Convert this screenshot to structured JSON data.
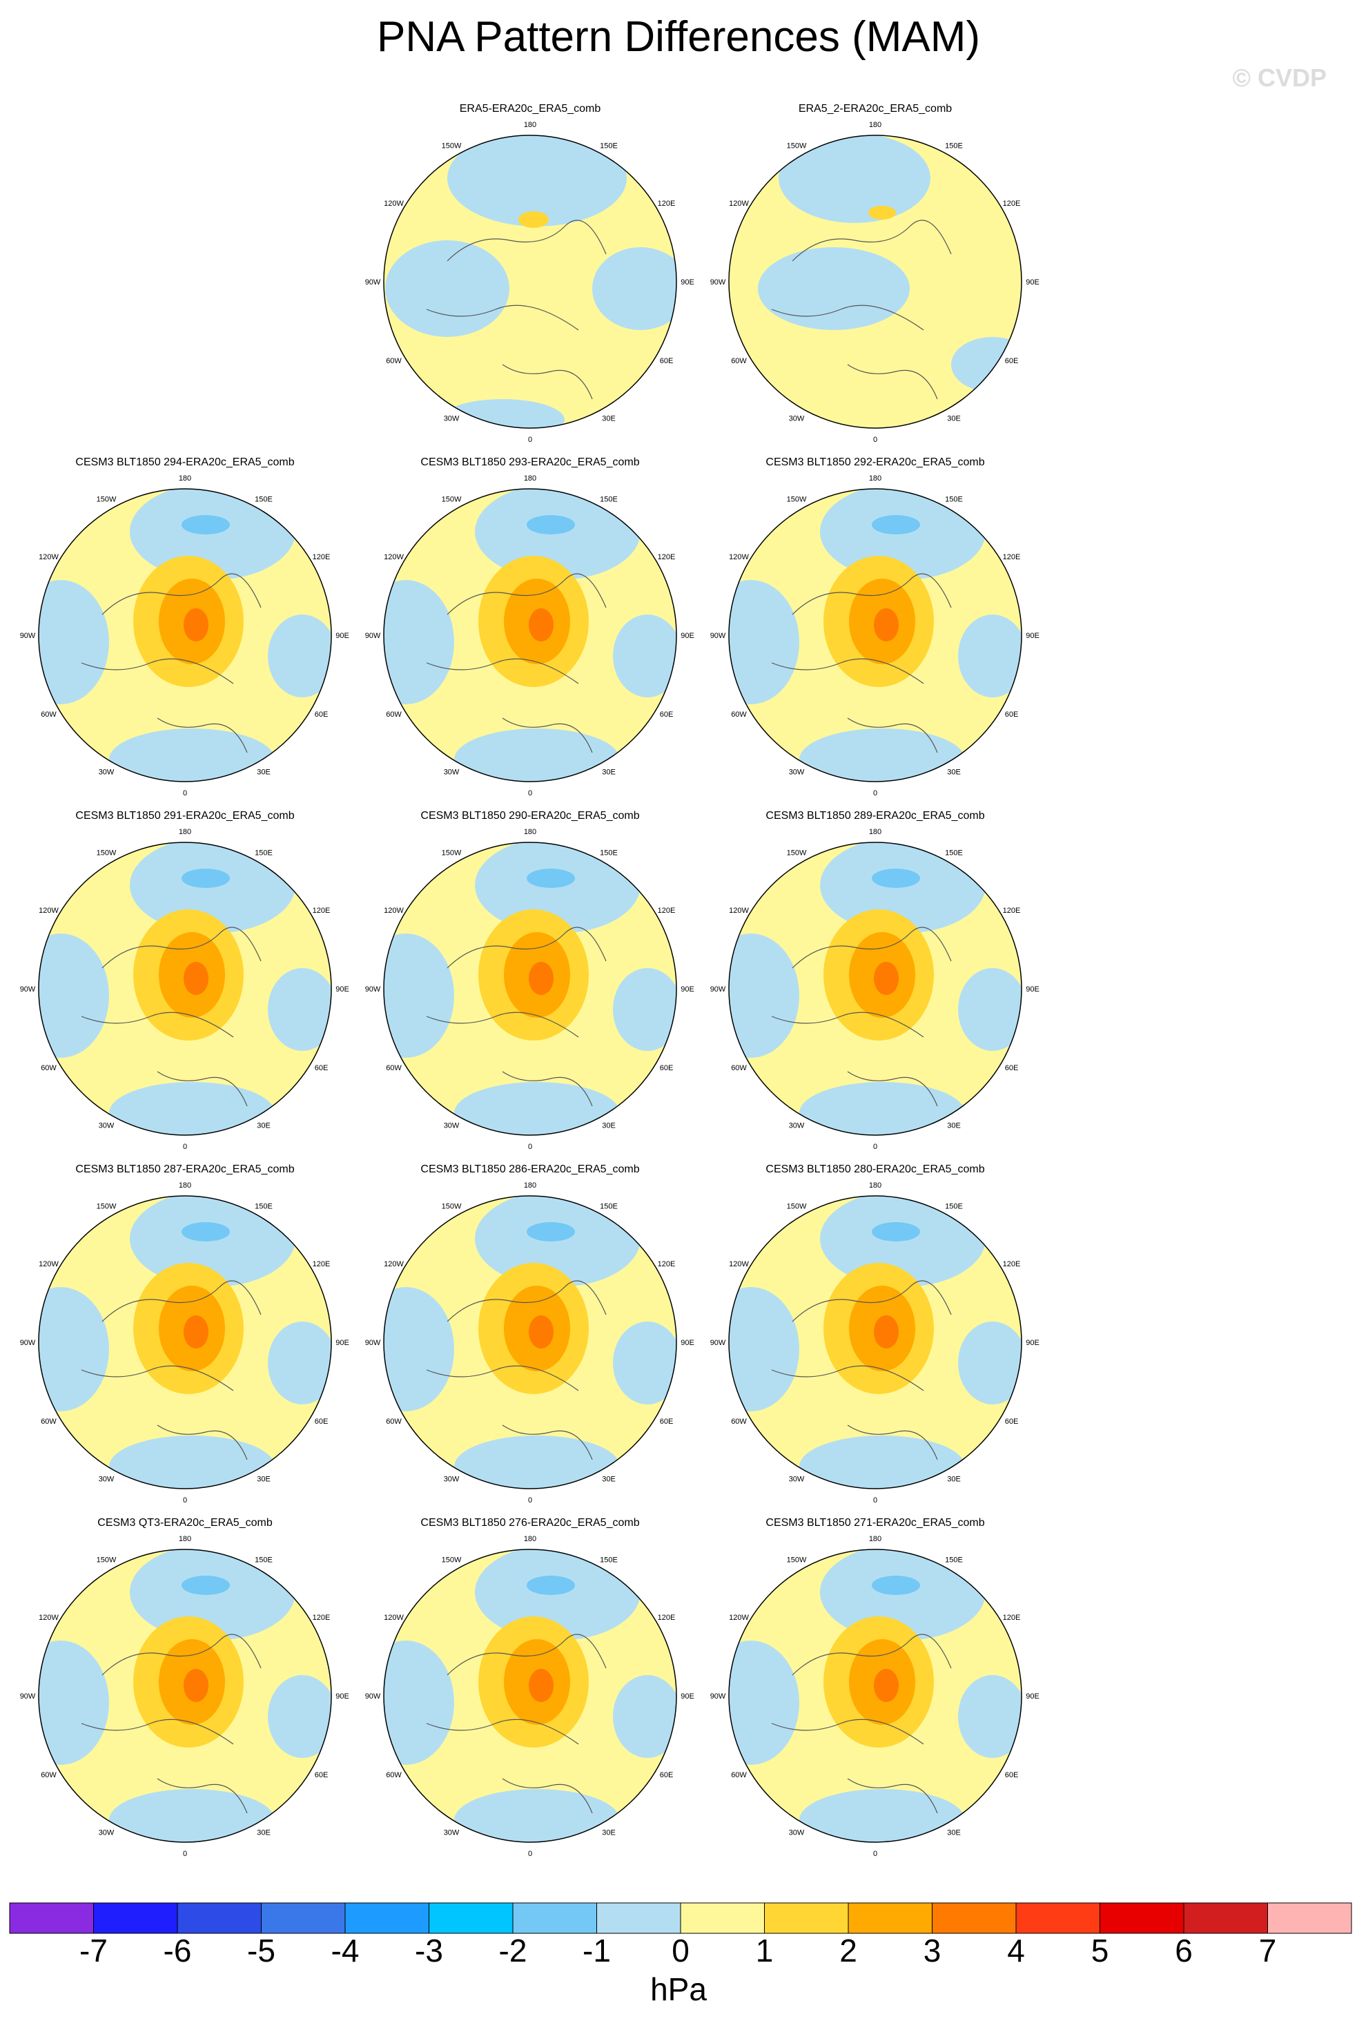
{
  "title": "PNA Pattern Differences (MAM)",
  "watermark": "© CVDP",
  "panels": [
    {
      "title": "ERA5-ERA20c_ERA5_comb",
      "pattern": "obs1"
    },
    {
      "title": "ERA5_2-ERA20c_ERA5_comb",
      "pattern": "obs2"
    },
    {
      "title": "CESM3 BLT1850 294-ERA20c_ERA5_comb",
      "pattern": "model"
    },
    {
      "title": "CESM3 BLT1850 293-ERA20c_ERA5_comb",
      "pattern": "model"
    },
    {
      "title": "CESM3 BLT1850 292-ERA20c_ERA5_comb",
      "pattern": "model"
    },
    {
      "title": "CESM3 BLT1850 291-ERA20c_ERA5_comb",
      "pattern": "model"
    },
    {
      "title": "CESM3 BLT1850 290-ERA20c_ERA5_comb",
      "pattern": "model"
    },
    {
      "title": "CESM3 BLT1850 289-ERA20c_ERA5_comb",
      "pattern": "model"
    },
    {
      "title": "CESM3 BLT1850 287-ERA20c_ERA5_comb",
      "pattern": "model"
    },
    {
      "title": "CESM3 BLT1850 286-ERA20c_ERA5_comb",
      "pattern": "model"
    },
    {
      "title": "CESM3 BLT1850 280-ERA20c_ERA5_comb",
      "pattern": "model"
    },
    {
      "title": "CESM3 QT3-ERA20c_ERA5_comb",
      "pattern": "model"
    },
    {
      "title": "CESM3 BLT1850 276-ERA20c_ERA5_comb",
      "pattern": "model"
    },
    {
      "title": "CESM3 BLT1850 271-ERA20c_ERA5_comb",
      "pattern": "model"
    }
  ],
  "longitude_labels": [
    "180",
    "150E",
    "120E",
    "90E",
    "60E",
    "30E",
    "0",
    "30W",
    "60W",
    "90W",
    "120W",
    "150W"
  ],
  "colorbar": {
    "colors": [
      "#8a2be2",
      "#1e1eff",
      "#2d4be6",
      "#3a78ea",
      "#1e9bff",
      "#00c5ff",
      "#73c8f5",
      "#b3def2",
      "#fff89a",
      "#ffd633",
      "#ffaa00",
      "#ff7a00",
      "#ff3c14",
      "#e60000",
      "#d21e1e",
      "#ffb4b4"
    ],
    "ticks": [
      "-7",
      "-6",
      "-5",
      "-4",
      "-3",
      "-2",
      "-1",
      "0",
      "1",
      "2",
      "3",
      "4",
      "5",
      "6",
      "7"
    ],
    "units": "hPa"
  },
  "colors": {
    "positive_weak": "#fff89a",
    "positive_1": "#ffd633",
    "positive_2": "#ffaa00",
    "positive_3": "#ff7a00",
    "negative_weak": "#b3def2",
    "negative_2": "#73c8f5",
    "coastline": "#555555"
  }
}
